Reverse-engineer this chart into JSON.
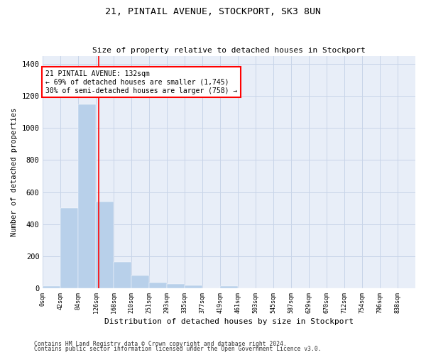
{
  "title1": "21, PINTAIL AVENUE, STOCKPORT, SK3 8UN",
  "title2": "Size of property relative to detached houses in Stockport",
  "xlabel": "Distribution of detached houses by size in Stockport",
  "ylabel": "Number of detached properties",
  "bin_labels": [
    "0sqm",
    "42sqm",
    "84sqm",
    "126sqm",
    "168sqm",
    "210sqm",
    "251sqm",
    "293sqm",
    "335sqm",
    "377sqm",
    "419sqm",
    "461sqm",
    "503sqm",
    "545sqm",
    "587sqm",
    "629sqm",
    "670sqm",
    "712sqm",
    "754sqm",
    "796sqm",
    "838sqm"
  ],
  "bar_values": [
    10,
    500,
    1150,
    540,
    165,
    80,
    32,
    25,
    18,
    0,
    14,
    0,
    0,
    0,
    0,
    0,
    0,
    0,
    0,
    0
  ],
  "bar_color": "#b8d0ea",
  "grid_color": "#c8d4e8",
  "background_color": "#e8eef8",
  "vline_color": "red",
  "annotation_text": "21 PINTAIL AVENUE: 132sqm\n← 69% of detached houses are smaller (1,745)\n30% of semi-detached houses are larger (758) →",
  "footnote1": "Contains HM Land Registry data © Crown copyright and database right 2024.",
  "footnote2": "Contains public sector information licensed under the Open Government Licence v3.0.",
  "ylim": [
    0,
    1450
  ],
  "bin_width": 42,
  "vline_x": 132,
  "yticks": [
    0,
    200,
    400,
    600,
    800,
    1000,
    1200,
    1400
  ]
}
